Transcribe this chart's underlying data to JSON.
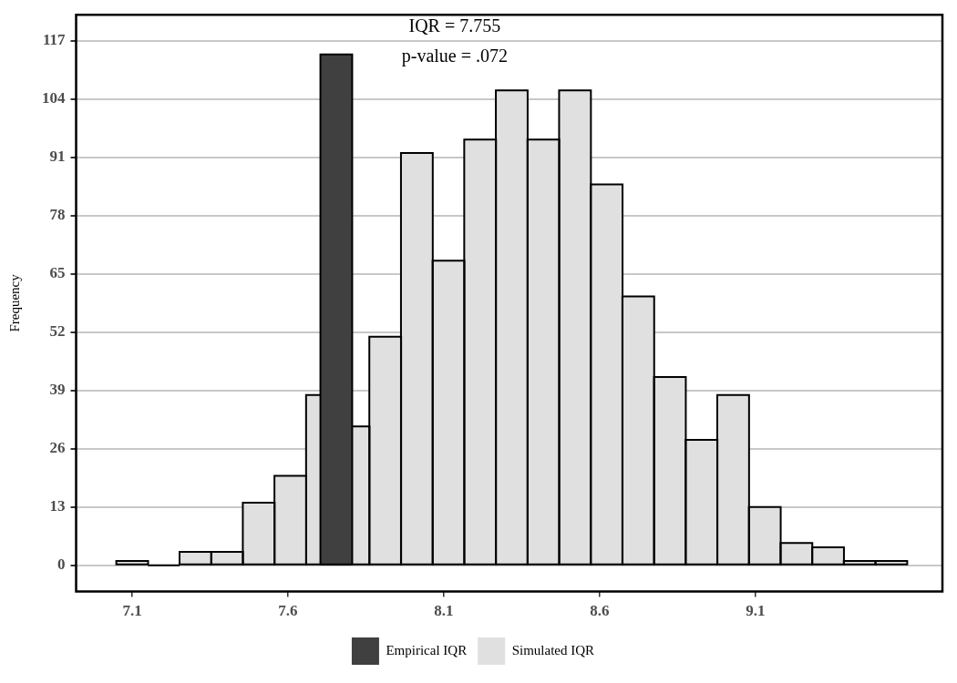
{
  "chart_data": {
    "type": "histogram",
    "ylabel": "Frequency",
    "annotations": [
      "IQR = 7.755",
      "p-value = .072"
    ],
    "bins": [
      7.049,
      7.151,
      7.252,
      7.354,
      7.455,
      7.557,
      7.658,
      7.76,
      7.861,
      7.963,
      8.064,
      8.166,
      8.267,
      8.369,
      8.47,
      8.572,
      8.673,
      8.775,
      8.876,
      8.978,
      9.079,
      9.181,
      9.282,
      9.384,
      9.485,
      9.587
    ],
    "series": [
      {
        "name": "Empirical IQR",
        "type": "bar",
        "color": "#404040",
        "x": [
          7.755
        ],
        "values": [
          114
        ]
      },
      {
        "name": "Simulated IQR",
        "color": "#e0e0e0",
        "values": [
          1,
          0,
          3,
          3,
          14,
          20,
          38,
          31,
          51,
          92,
          68,
          95,
          106,
          95,
          106,
          85,
          60,
          42,
          28,
          38,
          13,
          5,
          4,
          1,
          1
        ]
      }
    ],
    "xlim": [
      6.92,
      9.7
    ],
    "xticks": [
      7.1,
      7.6,
      8.1,
      8.6,
      9.1
    ],
    "ylim": [
      -5.85,
      122.85
    ],
    "yticks": [
      0,
      13,
      26,
      39,
      52,
      65,
      78,
      91,
      104,
      117
    ],
    "grid": "y",
    "legend": "bottom"
  }
}
